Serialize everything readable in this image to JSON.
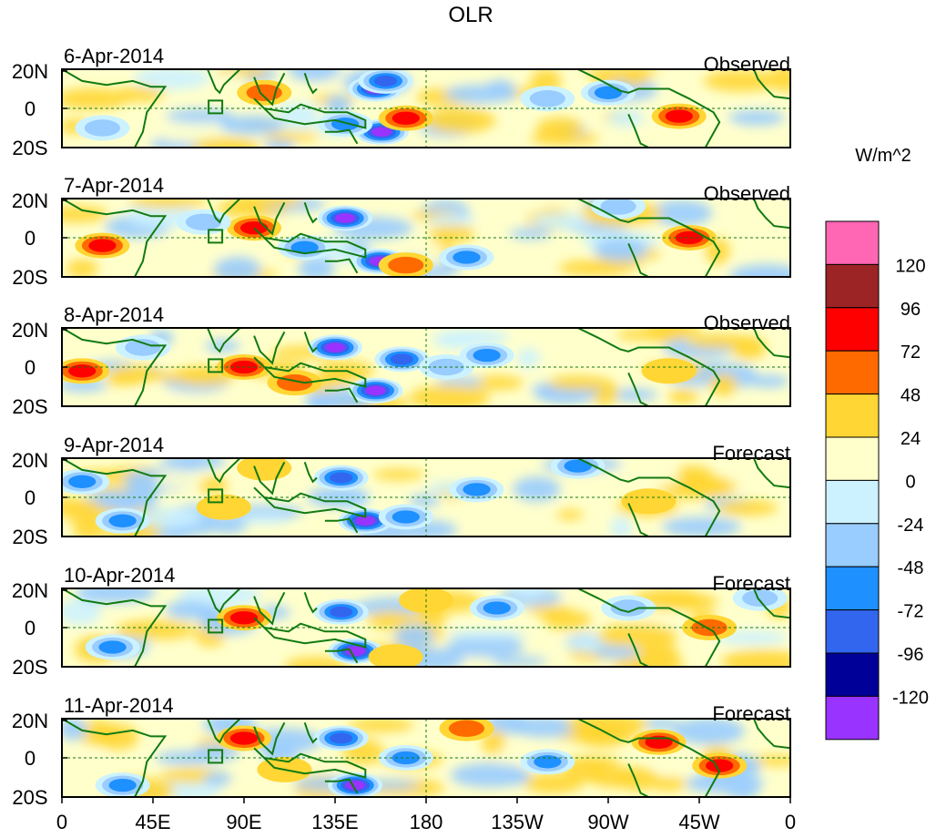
{
  "chart_data": {
    "type": "heatmap",
    "title": "OLR",
    "units_label": "W/m^2",
    "latitude_ticks": [
      "20N",
      "0",
      "20S"
    ],
    "longitude_ticks": [
      "0",
      "45E",
      "90E",
      "135E",
      "180",
      "135W",
      "90W",
      "45W",
      "0"
    ],
    "longitude_range": [
      0,
      360
    ],
    "latitude_range": [
      -20,
      20
    ],
    "colorbar": {
      "levels": [
        120,
        96,
        72,
        48,
        24,
        0,
        -24,
        -48,
        -72,
        -96,
        -120
      ],
      "colors": [
        "#ff66b3",
        "#9c2424",
        "#ff0000",
        "#ff6a00",
        "#ffd633",
        "#ffffcc",
        "#ccf2ff",
        "#99ccff",
        "#1e90ff",
        "#3366ee",
        "#000099",
        "#9933ff"
      ]
    },
    "panels": [
      {
        "date": "6-Apr-2014",
        "status": "Observed",
        "anomalies": [
          [
            155,
            10,
            -120
          ],
          [
            160,
            14,
            -96
          ],
          [
            158,
            -12,
            -120
          ],
          [
            100,
            8,
            48
          ],
          [
            170,
            -5,
            72
          ],
          [
            270,
            8,
            -72
          ],
          [
            305,
            -4,
            72
          ],
          [
            140,
            -8,
            -72
          ],
          [
            20,
            -10,
            -48
          ],
          [
            240,
            5,
            -48
          ]
        ]
      },
      {
        "date": "7-Apr-2014",
        "status": "Observed",
        "anomalies": [
          [
            140,
            10,
            -120
          ],
          [
            157,
            -12,
            -120
          ],
          [
            95,
            5,
            72
          ],
          [
            170,
            -14,
            48
          ],
          [
            310,
            0,
            72
          ],
          [
            20,
            -4,
            72
          ],
          [
            200,
            -10,
            -72
          ],
          [
            120,
            -5,
            -72
          ],
          [
            275,
            16,
            -48
          ],
          [
            70,
            8,
            -48
          ]
        ]
      },
      {
        "date": "8-Apr-2014",
        "status": "Observed",
        "anomalies": [
          [
            135,
            10,
            -120
          ],
          [
            155,
            -12,
            -120
          ],
          [
            90,
            0,
            72
          ],
          [
            168,
            4,
            -96
          ],
          [
            210,
            6,
            -72
          ],
          [
            10,
            -2,
            72
          ],
          [
            115,
            -8,
            48
          ],
          [
            190,
            0,
            -48
          ],
          [
            300,
            -2,
            24
          ],
          [
            40,
            10,
            -48
          ]
        ]
      },
      {
        "date": "9-Apr-2014",
        "status": "Forecast",
        "anomalies": [
          [
            150,
            -12,
            -120
          ],
          [
            138,
            10,
            -96
          ],
          [
            205,
            4,
            -72
          ],
          [
            170,
            -10,
            -72
          ],
          [
            10,
            8,
            -72
          ],
          [
            30,
            -12,
            -72
          ],
          [
            80,
            -5,
            24
          ],
          [
            290,
            -2,
            24
          ],
          [
            255,
            16,
            -72
          ],
          [
            100,
            15,
            24
          ]
        ]
      },
      {
        "date": "10-Apr-2014",
        "status": "Forecast",
        "anomalies": [
          [
            145,
            -12,
            -120
          ],
          [
            138,
            8,
            -96
          ],
          [
            215,
            10,
            -72
          ],
          [
            25,
            -10,
            -72
          ],
          [
            90,
            5,
            72
          ],
          [
            180,
            14,
            24
          ],
          [
            320,
            0,
            48
          ],
          [
            345,
            15,
            -48
          ],
          [
            280,
            10,
            -48
          ],
          [
            165,
            -15,
            24
          ]
        ]
      },
      {
        "date": "11-Apr-2014",
        "status": "Forecast",
        "anomalies": [
          [
            145,
            -14,
            -120
          ],
          [
            138,
            10,
            -96
          ],
          [
            90,
            10,
            72
          ],
          [
            325,
            -4,
            72
          ],
          [
            295,
            8,
            72
          ],
          [
            200,
            15,
            48
          ],
          [
            30,
            -14,
            -72
          ],
          [
            170,
            0,
            -72
          ],
          [
            240,
            -2,
            -72
          ],
          [
            110,
            -6,
            24
          ]
        ]
      }
    ]
  }
}
